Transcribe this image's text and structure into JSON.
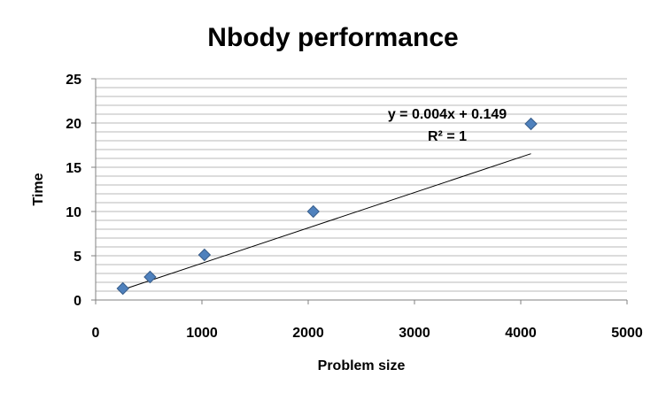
{
  "chart_data": {
    "type": "scatter",
    "title": "Nbody performance",
    "xlabel": "Problem size",
    "ylabel": "Time",
    "xlim": [
      0,
      5000
    ],
    "ylim": [
      0,
      25
    ],
    "x_ticks": [
      "0",
      "1000",
      "2000",
      "3000",
      "4000",
      "5000"
    ],
    "y_ticks": [
      "0",
      "5",
      "10",
      "15",
      "20",
      "25"
    ],
    "grid": true,
    "minor_grid": true,
    "legend": "none",
    "series": [
      {
        "marker": "diamond",
        "color": "#4f81bd",
        "points": [
          {
            "x": 256,
            "y": 1.3
          },
          {
            "x": 512,
            "y": 2.6
          },
          {
            "x": 1024,
            "y": 5.1
          },
          {
            "x": 2048,
            "y": 10.0
          },
          {
            "x": 4096,
            "y": 19.9
          }
        ]
      }
    ],
    "trendline": {
      "type": "linear",
      "slope": 0.004,
      "intercept": 0.149,
      "x_range": [
        256,
        4096
      ],
      "equation": "y = 0.004x + 0.149",
      "r_squared": "R² = 1"
    }
  }
}
